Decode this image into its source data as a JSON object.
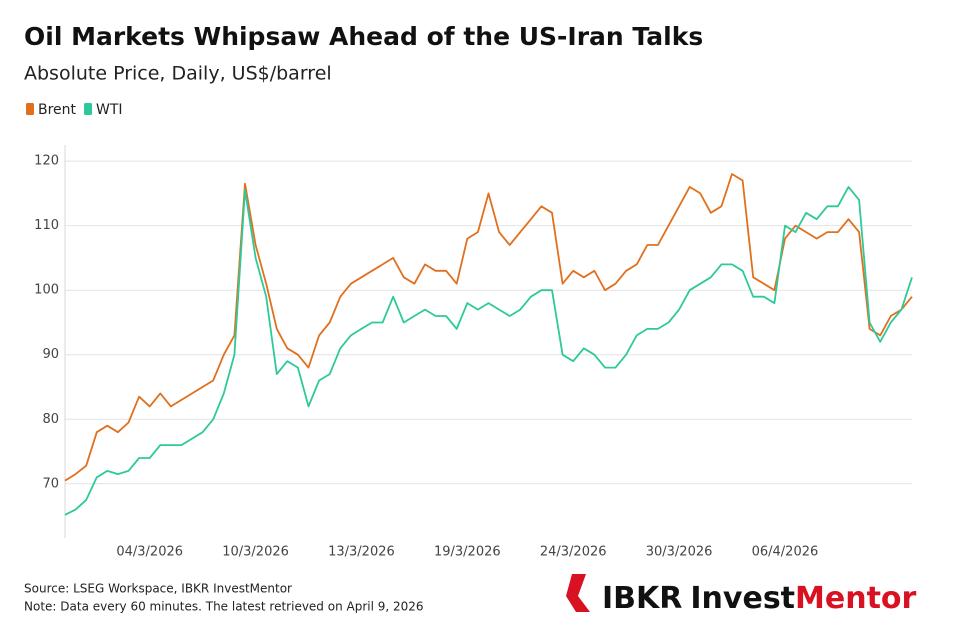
{
  "chart_data": {
    "type": "line",
    "title": "Oil Markets Whipsaw Ahead of the US-Iran Talks",
    "subtitle": "Absolute Price, Daily, US$/barrel",
    "categories": [
      null,
      null,
      null,
      null,
      null,
      null,
      null,
      null,
      "04/3/2026",
      null,
      null,
      null,
      null,
      null,
      null,
      null,
      null,
      null,
      "10/3/2026",
      null,
      null,
      null,
      null,
      null,
      null,
      null,
      null,
      null,
      "13/3/2026",
      null,
      null,
      null,
      null,
      null,
      null,
      null,
      null,
      null,
      "19/3/2026",
      null,
      null,
      null,
      null,
      null,
      null,
      null,
      null,
      null,
      "24/3/2026",
      null,
      null,
      null,
      null,
      null,
      null,
      null,
      null,
      null,
      "30/3/2026",
      null,
      null,
      null,
      null,
      null,
      null,
      null,
      null,
      null,
      "06/4/2026",
      null,
      null,
      null,
      null,
      null,
      null,
      null,
      null,
      null,
      null,
      null,
      null
    ],
    "series": [
      {
        "name": "Brent",
        "color": "#e0701e",
        "values": [
          70.5,
          71.5,
          72.8,
          78,
          79,
          78,
          79.5,
          83.5,
          82,
          84,
          82,
          83,
          84,
          85,
          86,
          90,
          93,
          116.5,
          107,
          101,
          94,
          91,
          90,
          88,
          93,
          95,
          99,
          101,
          102,
          103,
          104,
          105,
          102,
          101,
          104,
          103,
          103,
          101,
          108,
          109,
          115,
          109,
          107,
          109,
          111,
          113,
          112,
          101,
          103,
          102,
          103,
          100,
          101,
          103,
          104,
          107,
          107,
          110,
          113,
          116,
          115,
          112,
          113,
          118,
          117,
          102,
          101,
          100,
          108,
          110,
          109,
          108,
          109,
          109,
          111,
          109,
          94,
          93,
          96,
          97,
          99
        ]
      },
      {
        "name": "WTI",
        "color": "#2ec99a",
        "values": [
          65.2,
          66,
          67.5,
          71,
          72,
          71.5,
          72,
          74,
          74,
          76,
          76,
          76,
          77,
          78,
          80,
          84,
          90,
          115.5,
          105,
          99,
          87,
          89,
          88,
          82,
          86,
          87,
          91,
          93,
          94,
          95,
          95,
          99,
          95,
          96,
          97,
          96,
          96,
          94,
          98,
          97,
          98,
          97,
          96,
          97,
          99,
          100,
          100,
          90,
          89,
          91,
          90,
          88,
          88,
          90,
          93,
          94,
          94,
          95,
          97,
          100,
          101,
          102,
          104,
          104,
          103,
          99,
          99,
          98,
          110,
          109,
          112,
          111,
          113,
          113,
          116,
          114,
          95,
          92,
          95,
          97,
          102
        ]
      }
    ],
    "ylim": [
      61.6,
      122.5
    ],
    "yticks": [
      70,
      80,
      90,
      100,
      110,
      120
    ],
    "grid": true,
    "legend": "top-left",
    "source": "Source: LSEG Workspace, IBKR InvestMentor",
    "note": "Note: Data every 60 minutes. The latest retrieved on April 9, 2026",
    "logo": {
      "brand": "IBKR",
      "word1": "Invest",
      "word2": "Mentor"
    }
  }
}
